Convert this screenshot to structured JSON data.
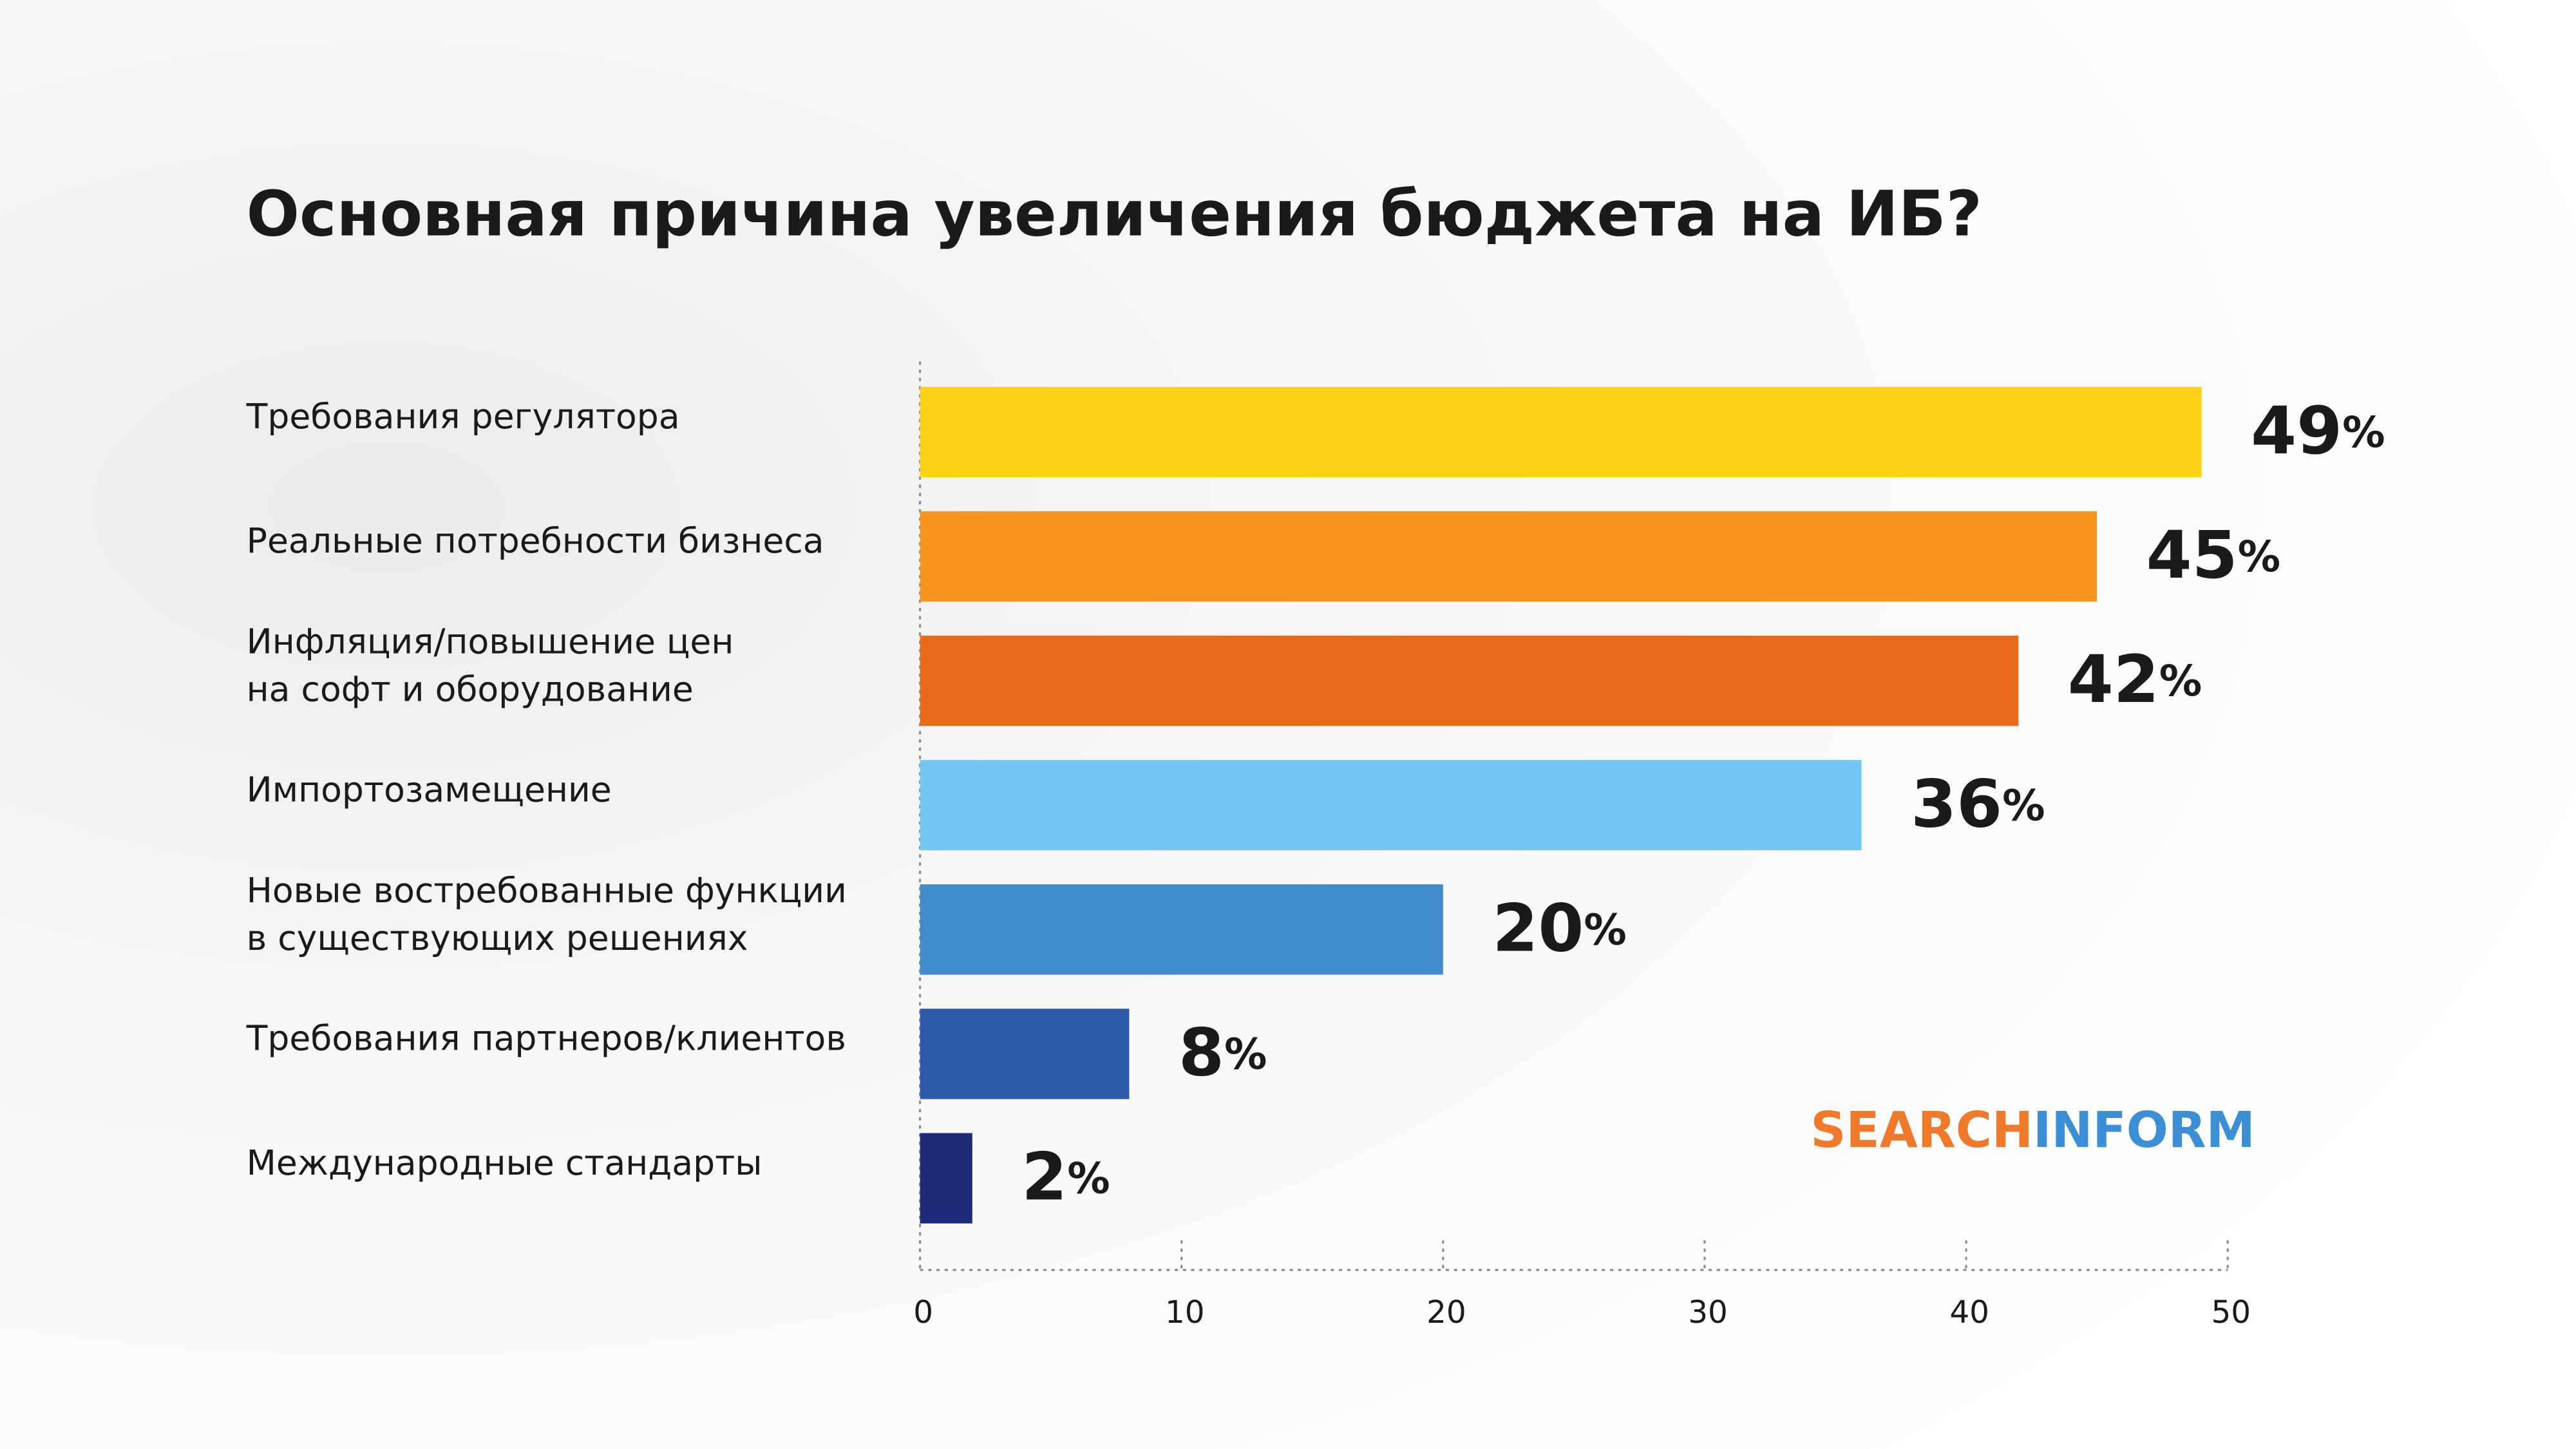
{
  "chart_data": {
    "type": "bar",
    "orientation": "horizontal",
    "title": "Основная причина увеличения бюджета на ИБ?",
    "categories": [
      "Требования регулятора",
      "Реальные потребности бизнеса",
      "Инфляция/повышение цен\nна софт и оборудование",
      "Импортозамещение",
      "Новые востребованные функции\nв существующих решениях",
      "Требования партнеров/клиентов",
      "Международные стандарты"
    ],
    "values": [
      49,
      45,
      42,
      36,
      20,
      8,
      2
    ],
    "value_labels": [
      "49%",
      "45%",
      "42%",
      "36%",
      "20%",
      "8%",
      "2%"
    ],
    "colors": [
      "#fcd116",
      "#f6961e",
      "#ea6a1c",
      "#74c9f2",
      "#418bcb",
      "#2b5ba8",
      "#1c2a78"
    ],
    "xlim": [
      0,
      50
    ],
    "xticks": [
      0,
      10,
      20,
      30,
      40,
      50
    ],
    "logo": {
      "left": "SEARCH",
      "right": "INFORM"
    }
  }
}
